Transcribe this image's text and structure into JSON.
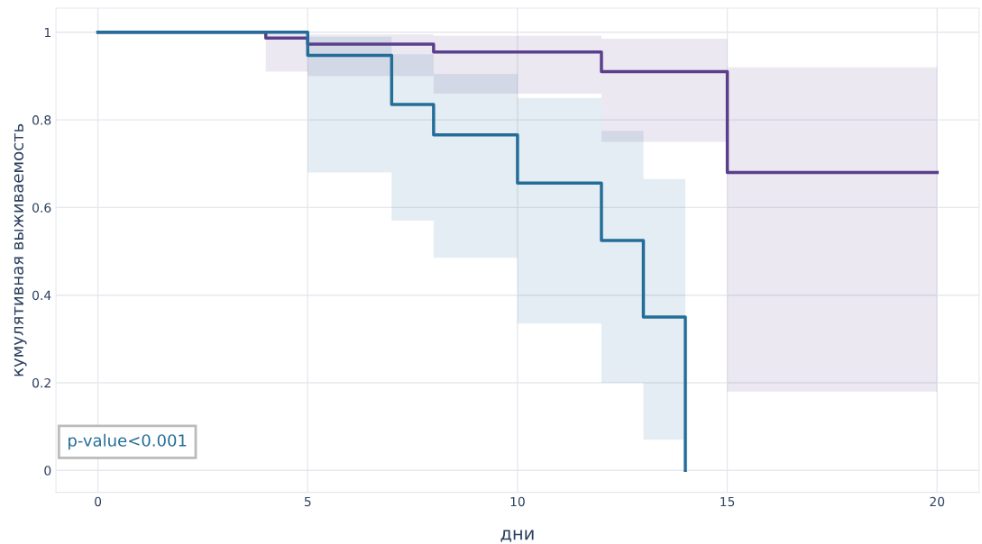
{
  "chart_data": {
    "type": "step",
    "xlabel": "дни",
    "ylabel": "кумулятивная выживаемость",
    "series": [
      {
        "color": "#5b3f8c",
        "x": [
          0,
          4,
          5,
          8,
          12,
          15,
          20
        ],
        "values": [
          1,
          0.987,
          0.973,
          0.955,
          0.91,
          0.68,
          0.68
        ],
        "lower": [
          null,
          0.91,
          0.9,
          0.86,
          0.75,
          0.18,
          0.18
        ],
        "upper": [
          null,
          1,
          0.995,
          0.992,
          0.985,
          0.92,
          0.92
        ]
      },
      {
        "color": "#256d99",
        "x": [
          0,
          5,
          7,
          8,
          10,
          12,
          13,
          14
        ],
        "values": [
          1,
          0.947,
          0.835,
          0.766,
          0.656,
          0.525,
          0.35,
          0
        ],
        "lower": [
          null,
          0.68,
          0.57,
          0.485,
          0.335,
          0.2,
          0.07,
          0.07
        ],
        "upper": [
          null,
          0.99,
          0.95,
          0.905,
          0.85,
          0.775,
          0.665,
          0.665
        ]
      }
    ],
    "xlim": [
      -1,
      21
    ],
    "ylim": [
      -0.05,
      1.055
    ],
    "xticks": [
      0,
      5,
      10,
      15,
      20
    ],
    "yticks": [
      0,
      0.2,
      0.4,
      0.6,
      0.8,
      1
    ],
    "grid": true,
    "legend": false,
    "annotations": [
      "p-value<0.001"
    ]
  }
}
